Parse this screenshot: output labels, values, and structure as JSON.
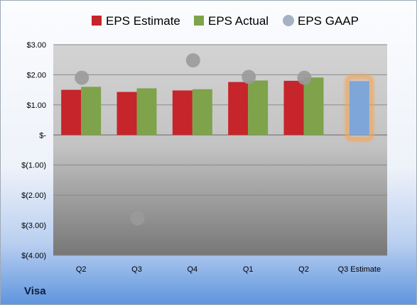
{
  "company": "Visa",
  "legend": [
    {
      "label": "EPS Estimate",
      "color": "#c5252b"
    },
    {
      "label": "EPS Actual",
      "color": "#7ea34b"
    },
    {
      "label": "EPS GAAP",
      "color": "#a6b2c2"
    }
  ],
  "chart_data": {
    "type": "bar",
    "categories": [
      "Q2",
      "Q3",
      "Q4",
      "Q1",
      "Q2",
      "Q3 Estimate"
    ],
    "series": [
      {
        "name": "EPS Estimate",
        "type": "bar",
        "values": [
          1.5,
          1.43,
          1.48,
          1.76,
          1.8,
          null
        ]
      },
      {
        "name": "EPS Actual",
        "type": "bar",
        "values": [
          1.6,
          1.55,
          1.52,
          1.81,
          1.91,
          null
        ]
      },
      {
        "name": "EPS GAAP",
        "type": "scatter",
        "values": [
          1.9,
          -2.77,
          2.48,
          1.93,
          1.9,
          null
        ]
      }
    ],
    "upcoming_estimate": {
      "category": "Q3 Estimate",
      "value": 1.79,
      "color": "#7ea6d9",
      "glow": "#f2a65a"
    },
    "ylim": [
      -4,
      3
    ],
    "yticks": [
      3,
      2,
      1,
      0,
      -1,
      -2,
      -3,
      -4
    ],
    "ytick_labels": [
      "$3.00",
      "$2.00",
      "$1.00",
      "$-",
      "$(1.00)",
      "$(2.00)",
      "$(3.00)",
      "$(4.00)"
    ],
    "grid": true,
    "legend_position": "top"
  }
}
